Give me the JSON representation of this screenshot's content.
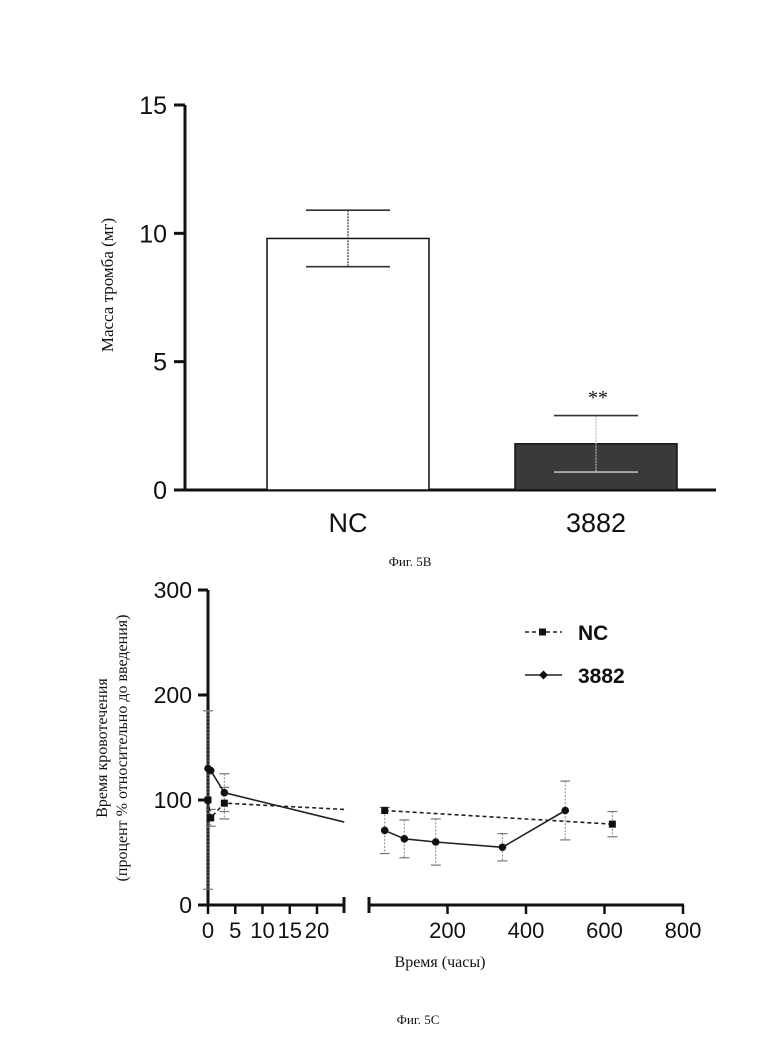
{
  "chart_data": [
    {
      "type": "bar",
      "ylabel": "Масса тромба (мг)",
      "ylim": [
        0,
        15
      ],
      "yticks": [
        "0",
        "5",
        "10",
        "15"
      ],
      "categories": [
        "NC",
        "3882"
      ],
      "values": [
        9.8,
        1.8
      ],
      "errors": [
        1.1,
        1.1
      ],
      "fills": [
        "#ffffff",
        "#3a3a3a"
      ],
      "annotation": "**",
      "caption": "Фиг. 5В"
    },
    {
      "type": "line",
      "ylabel_line1": "Время кровотечения",
      "ylabel_line2": "(процент % относительно до введения)",
      "xlabel": "Время (часы)",
      "ylim": [
        0,
        300
      ],
      "yticks": [
        "0",
        "100",
        "200",
        "300"
      ],
      "xticks_left": [
        "0",
        "5",
        "10",
        "15",
        "20"
      ],
      "xticks_right": [
        "200",
        "400",
        "600",
        "800"
      ],
      "legend_position": "top-right",
      "series": [
        {
          "name": "NC",
          "style": "dashed",
          "marker": "square",
          "x": [
            0,
            0.5,
            3,
            25,
            40,
            620
          ],
          "y": [
            100,
            83,
            97,
            91,
            90,
            77
          ],
          "err": [
            85,
            8,
            15,
            0,
            0,
            12
          ]
        },
        {
          "name": "3882",
          "style": "solid",
          "marker": "diamond",
          "x": [
            0,
            0.5,
            3,
            25,
            40,
            90,
            170,
            340,
            500
          ],
          "y": [
            130,
            128,
            107,
            79,
            71,
            63,
            60,
            55,
            90
          ],
          "err": [
            0,
            0,
            18,
            0,
            22,
            18,
            22,
            13,
            28
          ]
        }
      ],
      "caption": "Фиг. 5С"
    }
  ]
}
